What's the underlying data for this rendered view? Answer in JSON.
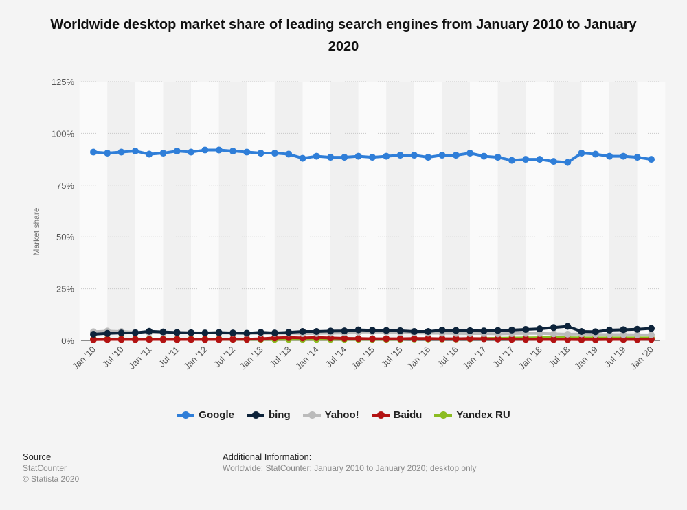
{
  "chart_data": {
    "type": "line",
    "title": "Worldwide desktop market share of leading search engines from January 2010 to January 2020",
    "ylabel": "Market share",
    "xlabel": "",
    "ylim": [
      0,
      125
    ],
    "yticks": [
      "0%",
      "25%",
      "50%",
      "75%",
      "100%",
      "125%"
    ],
    "ytick_values": [
      0,
      25,
      50,
      75,
      100,
      125
    ],
    "grid": true,
    "legend": "bottom",
    "x_labels": [
      "Jan '10",
      "Jul '10",
      "Jan '11",
      "Jul '11",
      "Jan '12",
      "Jul '12",
      "Jan '13",
      "Jul '13",
      "Jan '14",
      "Jul '14",
      "Jan '15",
      "Jul '15",
      "Jan '16",
      "Jul '16",
      "Jan '17",
      "Jul '17",
      "Jan '18",
      "Jul '18",
      "Jan '19",
      "Jul '19",
      "Jan '20"
    ],
    "x_frequency": "quarterly",
    "series": [
      {
        "name": "Google",
        "color": "#2f7ed8",
        "values": [
          91,
          90.5,
          91,
          91.5,
          90,
          90.5,
          91.5,
          91,
          92,
          92,
          91.5,
          91,
          90.5,
          90.5,
          90,
          88,
          89,
          88.5,
          88.5,
          89,
          88.5,
          89,
          89.5,
          89.5,
          88.5,
          89.5,
          89.5,
          90.5,
          89,
          88.5,
          87,
          87.5,
          87.5,
          86.5,
          86,
          90.5,
          90,
          89,
          89,
          88.5,
          87.5
        ]
      },
      {
        "name": "bing",
        "color": "#0d233a",
        "values": [
          3.0,
          3.4,
          3.6,
          3.7,
          4.4,
          4.1,
          3.8,
          3.7,
          3.6,
          3.8,
          3.6,
          3.5,
          3.9,
          3.6,
          3.9,
          4.3,
          4.3,
          4.5,
          4.6,
          5.1,
          4.9,
          4.8,
          4.7,
          4.3,
          4.3,
          5.0,
          4.8,
          4.7,
          4.6,
          4.8,
          5.0,
          5.3,
          5.6,
          6.2,
          6.8,
          4.3,
          4.2,
          5.0,
          5.2,
          5.4,
          5.8
        ]
      },
      {
        "name": "Yahoo!",
        "color": "#bbbbbb",
        "values": [
          4.2,
          4.5,
          4.3,
          4.0,
          3.8,
          3.7,
          3.8,
          3.7,
          3.7,
          3.6,
          3.5,
          3.4,
          3.4,
          3.4,
          3.5,
          3.3,
          3.4,
          3.5,
          3.6,
          4.0,
          4.1,
          4.0,
          3.8,
          3.6,
          3.5,
          3.5,
          3.4,
          3.3,
          3.3,
          3.2,
          3.3,
          3.4,
          3.4,
          3.2,
          3.0,
          3.1,
          2.9,
          2.8,
          2.8,
          2.7,
          2.7
        ]
      },
      {
        "name": "Baidu",
        "color": "#b31212",
        "values": [
          0.4,
          0.5,
          0.5,
          0.5,
          0.5,
          0.5,
          0.5,
          0.5,
          0.5,
          0.5,
          0.6,
          0.6,
          0.8,
          1.2,
          1.4,
          1.2,
          1.4,
          1.2,
          1.0,
          0.9,
          0.8,
          0.8,
          0.8,
          0.9,
          0.9,
          0.8,
          0.8,
          0.9,
          0.8,
          0.7,
          0.6,
          0.6,
          0.5,
          0.5,
          0.5,
          0.4,
          0.4,
          0.5,
          0.5,
          0.5,
          0.6
        ]
      },
      {
        "name": "Yandex RU",
        "color": "#8bbc21",
        "values": [
          0.6,
          0.6,
          0.6,
          0.6,
          0.6,
          0.6,
          0.6,
          0.6,
          0.6,
          0.6,
          0.6,
          0.6,
          0.6,
          0.6,
          0.6,
          0.6,
          0.6,
          0.6,
          0.6,
          0.6,
          0.6,
          0.6,
          0.6,
          0.7,
          0.7,
          0.7,
          0.7,
          0.8,
          0.9,
          1.0,
          1.1,
          1.2,
          1.3,
          1.4,
          1.3,
          1.2,
          1.2,
          1.2,
          1.2,
          1.2,
          1.2
        ]
      }
    ]
  },
  "footer": {
    "source_label": "Source",
    "source_lines": [
      "StatCounter",
      "© Statista 2020"
    ],
    "info_label": "Additional Information:",
    "info_text": "Worldwide; StatCounter; January 2010 to January 2020; desktop only"
  }
}
